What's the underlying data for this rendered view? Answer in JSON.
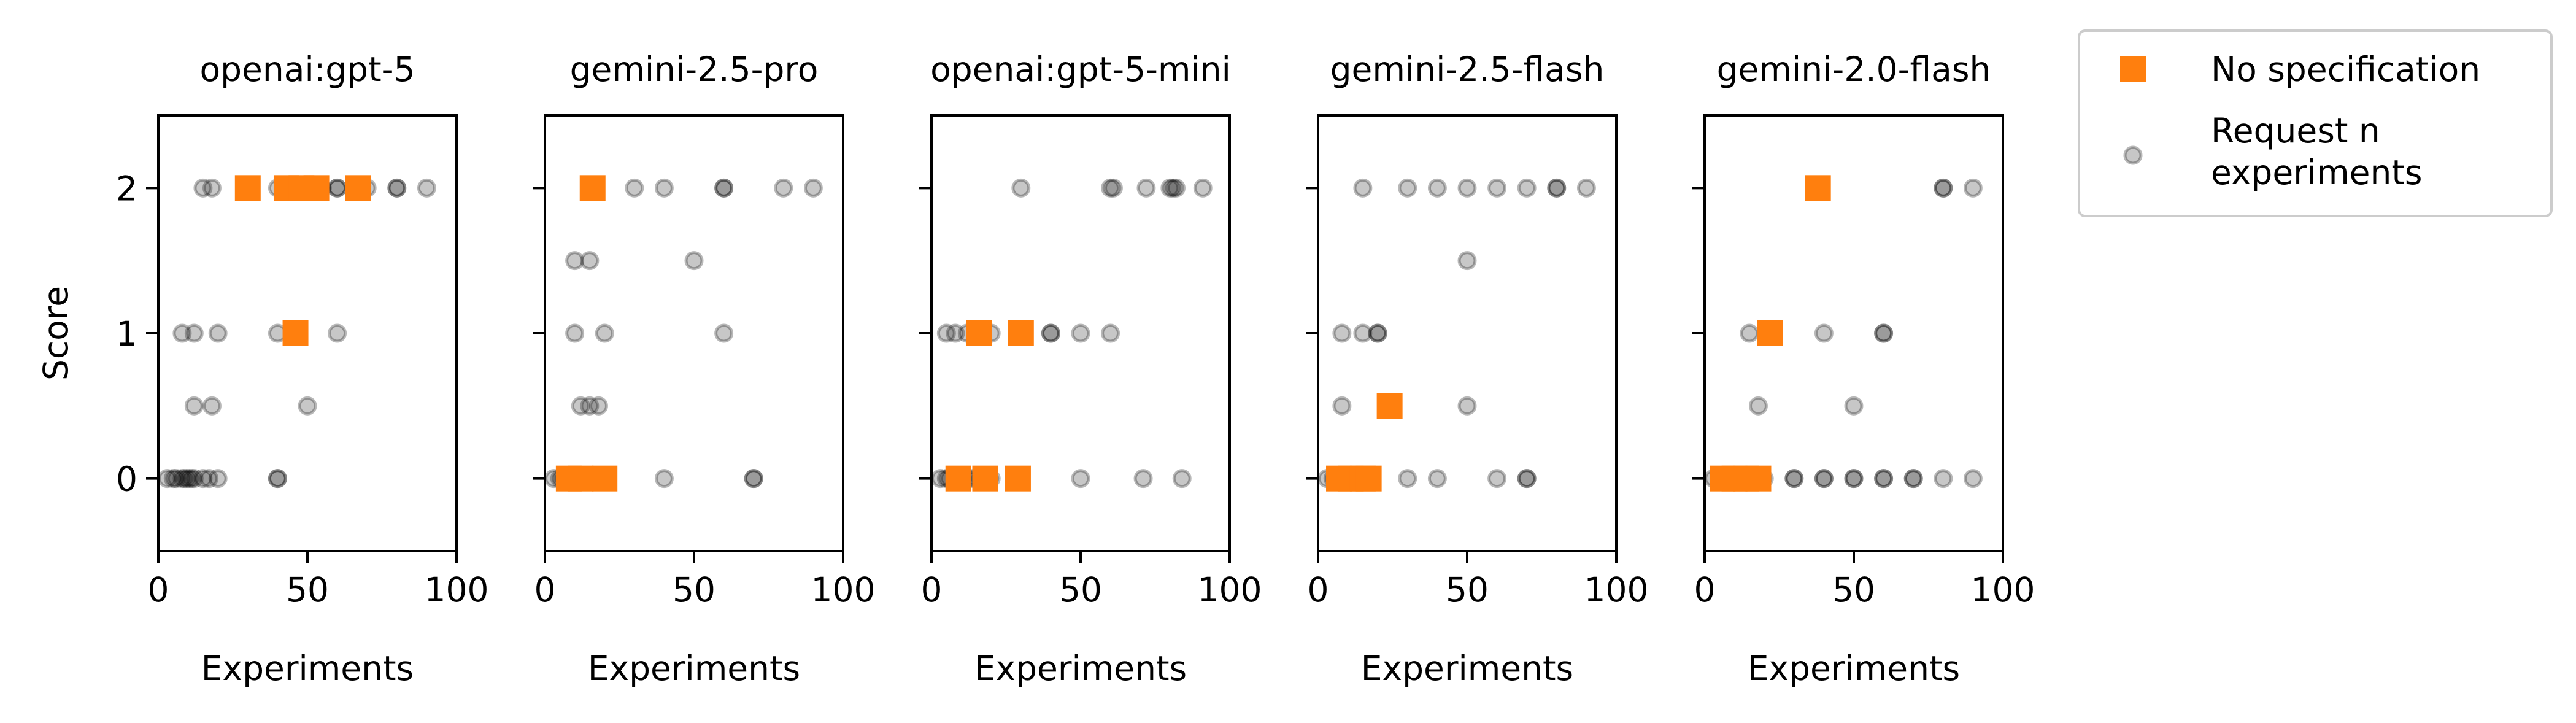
{
  "chart_data": {
    "type": "scatter",
    "ylabel": "Score",
    "xlabel": "Experiments",
    "xlim": [
      0,
      100
    ],
    "ylim": [
      -0.5,
      2.5
    ],
    "xticks": [
      "0",
      "50",
      "100"
    ],
    "yticks": [
      "0",
      "1",
      "2"
    ],
    "colors": {
      "no_spec": "#ff7f0e",
      "request_n": "#000000"
    },
    "legend": {
      "placement": "outside-right-top",
      "entries": [
        {
          "key": "no_spec",
          "label": "No specification"
        },
        {
          "key": "request_n",
          "label_lines": [
            "Request n",
            "experiments"
          ]
        }
      ]
    },
    "panels": [
      {
        "title": "openai:gpt-5",
        "no_spec": [
          [
            30,
            2
          ],
          [
            43,
            2
          ],
          [
            48,
            2
          ],
          [
            53,
            2
          ],
          [
            67,
            2
          ],
          [
            46,
            1
          ]
        ],
        "request_n": [
          [
            15,
            2
          ],
          [
            18,
            2
          ],
          [
            30,
            2
          ],
          [
            30,
            2
          ],
          [
            40,
            2
          ],
          [
            45,
            2
          ],
          [
            50,
            2
          ],
          [
            55,
            2
          ],
          [
            60,
            2
          ],
          [
            60,
            2
          ],
          [
            70,
            2
          ],
          [
            80,
            2
          ],
          [
            80,
            2
          ],
          [
            90,
            2
          ],
          [
            8,
            1
          ],
          [
            12,
            1
          ],
          [
            20,
            1
          ],
          [
            40,
            1
          ],
          [
            60,
            1
          ],
          [
            12,
            0.5
          ],
          [
            18,
            0.5
          ],
          [
            50,
            0.5
          ],
          [
            3,
            0
          ],
          [
            5,
            0
          ],
          [
            6,
            0
          ],
          [
            8,
            0
          ],
          [
            9,
            0
          ],
          [
            10,
            0
          ],
          [
            11,
            0
          ],
          [
            12,
            0
          ],
          [
            15,
            0
          ],
          [
            17,
            0
          ],
          [
            20,
            0
          ],
          [
            40,
            0
          ],
          [
            40,
            0
          ]
        ]
      },
      {
        "title": "gemini-2.5-pro",
        "no_spec": [
          [
            16,
            2
          ],
          [
            8,
            0
          ],
          [
            12,
            0
          ],
          [
            20,
            0
          ]
        ],
        "request_n": [
          [
            16,
            2
          ],
          [
            17,
            2
          ],
          [
            30,
            2
          ],
          [
            40,
            2
          ],
          [
            60,
            2
          ],
          [
            60,
            2
          ],
          [
            80,
            2
          ],
          [
            90,
            2
          ],
          [
            10,
            1.5
          ],
          [
            15,
            1.5
          ],
          [
            50,
            1.5
          ],
          [
            10,
            1
          ],
          [
            20,
            1
          ],
          [
            60,
            1
          ],
          [
            12,
            0.5
          ],
          [
            15,
            0.5
          ],
          [
            18,
            0.5
          ],
          [
            3,
            0
          ],
          [
            5,
            0
          ],
          [
            6,
            0
          ],
          [
            8,
            0
          ],
          [
            10,
            0
          ],
          [
            12,
            0
          ],
          [
            15,
            0
          ],
          [
            18,
            0
          ],
          [
            40,
            0
          ],
          [
            70,
            0
          ],
          [
            70,
            0
          ]
        ]
      },
      {
        "title": "openai:gpt-5-mini",
        "no_spec": [
          [
            16,
            1
          ],
          [
            30,
            1
          ],
          [
            9,
            0
          ],
          [
            18,
            0
          ],
          [
            29,
            0
          ]
        ],
        "request_n": [
          [
            30,
            2
          ],
          [
            60,
            2
          ],
          [
            61,
            2
          ],
          [
            72,
            2
          ],
          [
            80,
            2
          ],
          [
            81,
            2
          ],
          [
            82,
            2
          ],
          [
            91,
            2
          ],
          [
            5,
            1
          ],
          [
            8,
            1
          ],
          [
            12,
            1
          ],
          [
            20,
            1
          ],
          [
            30,
            1
          ],
          [
            30,
            1
          ],
          [
            40,
            1
          ],
          [
            40,
            1
          ],
          [
            50,
            1
          ],
          [
            60,
            1
          ],
          [
            3,
            0
          ],
          [
            5,
            0
          ],
          [
            6,
            0
          ],
          [
            8,
            0
          ],
          [
            10,
            0
          ],
          [
            12,
            0
          ],
          [
            14,
            0
          ],
          [
            16,
            0
          ],
          [
            18,
            0
          ],
          [
            20,
            0
          ],
          [
            50,
            0
          ],
          [
            71,
            0
          ],
          [
            84,
            0
          ]
        ]
      },
      {
        "title": "gemini-2.5-flash",
        "no_spec": [
          [
            24,
            0.5
          ],
          [
            7,
            0
          ],
          [
            11,
            0
          ],
          [
            15,
            0
          ],
          [
            17,
            0
          ]
        ],
        "request_n": [
          [
            15,
            2
          ],
          [
            30,
            2
          ],
          [
            40,
            2
          ],
          [
            50,
            2
          ],
          [
            60,
            2
          ],
          [
            70,
            2
          ],
          [
            80,
            2
          ],
          [
            80,
            2
          ],
          [
            90,
            2
          ],
          [
            50,
            1.5
          ],
          [
            8,
            1
          ],
          [
            15,
            1
          ],
          [
            20,
            1
          ],
          [
            20,
            1
          ],
          [
            8,
            0.5
          ],
          [
            50,
            0.5
          ],
          [
            3,
            0
          ],
          [
            5,
            0
          ],
          [
            7,
            0
          ],
          [
            9,
            0
          ],
          [
            10,
            0
          ],
          [
            12,
            0
          ],
          [
            14,
            0
          ],
          [
            15,
            0
          ],
          [
            30,
            0
          ],
          [
            40,
            0
          ],
          [
            60,
            0
          ],
          [
            70,
            0
          ],
          [
            70,
            0
          ]
        ]
      },
      {
        "title": "gemini-2.0-flash",
        "no_spec": [
          [
            38,
            2
          ],
          [
            22,
            1
          ],
          [
            6,
            0
          ],
          [
            10,
            0
          ],
          [
            14,
            0
          ],
          [
            18,
            0
          ]
        ],
        "request_n": [
          [
            80,
            2
          ],
          [
            80,
            2
          ],
          [
            90,
            2
          ],
          [
            15,
            1
          ],
          [
            40,
            1
          ],
          [
            60,
            1
          ],
          [
            60,
            1
          ],
          [
            18,
            0.5
          ],
          [
            50,
            0.5
          ],
          [
            3,
            0
          ],
          [
            5,
            0
          ],
          [
            7,
            0
          ],
          [
            9,
            0
          ],
          [
            11,
            0
          ],
          [
            13,
            0
          ],
          [
            15,
            0
          ],
          [
            17,
            0
          ],
          [
            20,
            0
          ],
          [
            30,
            0
          ],
          [
            30,
            0
          ],
          [
            40,
            0
          ],
          [
            40,
            0
          ],
          [
            50,
            0
          ],
          [
            50,
            0
          ],
          [
            60,
            0
          ],
          [
            60,
            0
          ],
          [
            70,
            0
          ],
          [
            70,
            0
          ],
          [
            80,
            0
          ],
          [
            90,
            0
          ]
        ]
      }
    ]
  }
}
